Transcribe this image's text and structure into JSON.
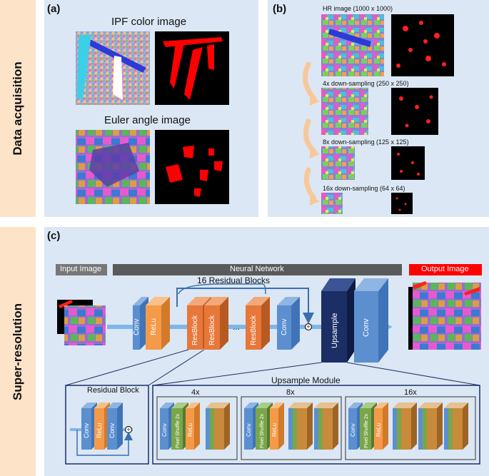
{
  "sections": {
    "data_acquisition": "Data acquisition",
    "super_resolution": "Super-resolution"
  },
  "panel_a": {
    "label": "(a)",
    "ipf_title": "IPF color image",
    "euler_title": "Euler angle image"
  },
  "panel_b": {
    "label": "(b)",
    "rows": [
      "HR image (1000 x 1000)",
      "4x down-sampling (250 x 250)",
      "8x down-sampling (125 x 125)",
      "16x down-sampling (64 x 64)"
    ]
  },
  "panel_c": {
    "label": "(c)",
    "input_label": "Input Image",
    "network_label": "Neural Network",
    "output_label": "Output  Image",
    "residual_blocks_label": "16 Residual Blocks",
    "layers": {
      "conv": "Conv",
      "relu": "ReLu",
      "resblock": "ResBlock",
      "dots": "...",
      "upsample": "Upsample",
      "pixel_shuffle": "Pixel Shuffle 2x"
    },
    "residual_block_title": "Residual Block",
    "upsample_module_title": "Upsample Module",
    "scales": [
      "4x",
      "8x",
      "16x"
    ]
  },
  "colors": {
    "conv_blue": "#5b8fd0",
    "relu_orange": "#f59a48",
    "resblock_orange": "#e8773a",
    "upsample_navy": "#1b2f66",
    "pixel_green": "#7aa64a",
    "panel_bg": "#dbe7f4",
    "side_bg": "#fde3c8",
    "output_red": "#ff0000"
  }
}
